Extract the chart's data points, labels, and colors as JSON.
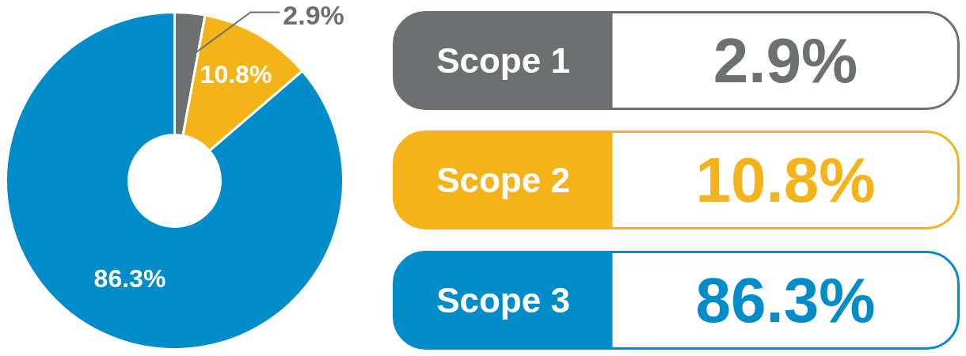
{
  "chart_data": {
    "type": "donut",
    "categories": [
      "Scope 1",
      "Scope 2",
      "Scope 3"
    ],
    "values": [
      2.9,
      10.8,
      86.3
    ],
    "colors": [
      "#6d7070",
      "#f5b31a",
      "#008cc9"
    ],
    "value_labels": [
      "2.9%",
      "10.8%",
      "86.3%"
    ],
    "legend": "right"
  }
}
